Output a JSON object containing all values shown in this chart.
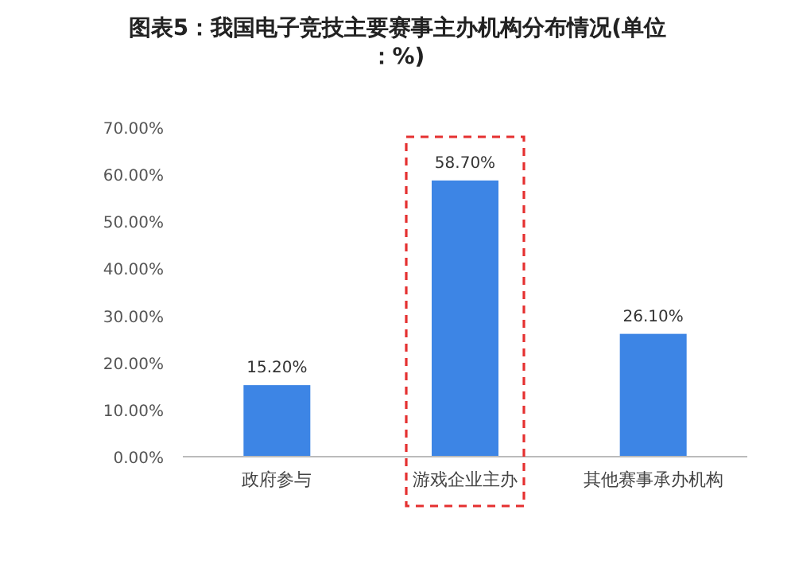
{
  "chart_data": {
    "type": "bar",
    "title": "图表5：我国电子竞技主要赛事主办机构分布情况(单位：%)",
    "categories": [
      "政府参与",
      "游戏企业主办",
      "其他赛事承办机构"
    ],
    "values": [
      15.2,
      58.7,
      26.1
    ],
    "value_labels": [
      "15.20%",
      "58.70%",
      "26.10%"
    ],
    "color": "#3d85e5",
    "ylim": [
      0,
      70
    ],
    "yticks": [
      {
        "value": 0,
        "label": "0.00%"
      },
      {
        "value": 10,
        "label": "10.00%"
      },
      {
        "value": 20,
        "label": "20.00%"
      },
      {
        "value": 30,
        "label": "30.00%"
      },
      {
        "value": 40,
        "label": "40.00%"
      },
      {
        "value": 50,
        "label": "50.00%"
      },
      {
        "value": 60,
        "label": "60.00%"
      },
      {
        "value": 70,
        "label": "70.00%"
      }
    ]
  }
}
